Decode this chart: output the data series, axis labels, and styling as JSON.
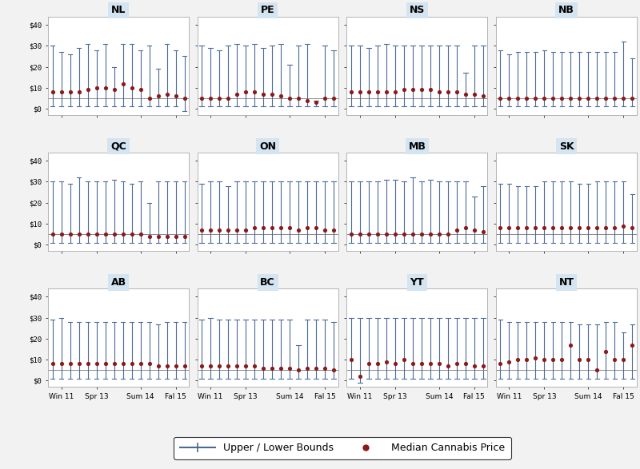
{
  "provinces": [
    "NL",
    "PE",
    "NS",
    "NB",
    "QC",
    "ON",
    "MB",
    "SK",
    "AB",
    "BC",
    "YT",
    "NT"
  ],
  "n_points": 16,
  "ylim": [
    -3,
    44
  ],
  "yticks": [
    0,
    10,
    20,
    30,
    40
  ],
  "yticklabels": [
    "$0",
    "$10",
    "$20",
    "$30",
    "$40"
  ],
  "hline_y": 5,
  "bar_color": "#4a6b9a",
  "dot_color": "#8b1a1a",
  "title_bg": "#d4e4f0",
  "subplot_bg": "#ffffff",
  "figure_bg": "#e8e8e8",
  "outer_bg": "#f2f2f2",
  "data": {
    "NL": {
      "medians": [
        8,
        8,
        8,
        8,
        9,
        10,
        10,
        9,
        12,
        10,
        9,
        5,
        6,
        7,
        6,
        5
      ],
      "upper": [
        30,
        27,
        26,
        29,
        31,
        28,
        31,
        20,
        31,
        31,
        28,
        30,
        19,
        31,
        28,
        25
      ],
      "lower": [
        1,
        1,
        1,
        1,
        1,
        1,
        1,
        1,
        1,
        1,
        1,
        1,
        1,
        1,
        1,
        -1
      ]
    },
    "PE": {
      "medians": [
        5,
        5,
        5,
        5,
        7,
        8,
        8,
        7,
        7,
        6,
        5,
        5,
        4,
        3,
        5,
        5
      ],
      "upper": [
        30,
        29,
        28,
        30,
        31,
        30,
        31,
        29,
        30,
        31,
        21,
        30,
        31,
        4,
        30,
        28
      ],
      "lower": [
        1,
        1,
        1,
        1,
        1,
        1,
        1,
        1,
        1,
        1,
        1,
        1,
        1,
        1,
        1,
        1
      ]
    },
    "NS": {
      "medians": [
        8,
        8,
        8,
        8,
        8,
        8,
        9,
        9,
        9,
        9,
        8,
        8,
        8,
        7,
        7,
        6
      ],
      "upper": [
        30,
        30,
        29,
        30,
        31,
        30,
        30,
        30,
        30,
        30,
        30,
        30,
        30,
        17,
        30,
        30
      ],
      "lower": [
        1,
        1,
        1,
        1,
        1,
        1,
        1,
        1,
        1,
        1,
        1,
        1,
        1,
        1,
        1,
        1
      ]
    },
    "NB": {
      "medians": [
        5,
        5,
        5,
        5,
        5,
        5,
        5,
        5,
        5,
        5,
        5,
        5,
        5,
        5,
        5,
        5
      ],
      "upper": [
        28,
        26,
        27,
        27,
        27,
        28,
        27,
        27,
        27,
        27,
        27,
        27,
        27,
        27,
        32,
        24
      ],
      "lower": [
        1,
        1,
        1,
        1,
        1,
        1,
        1,
        1,
        1,
        1,
        1,
        1,
        1,
        1,
        1,
        1
      ]
    },
    "QC": {
      "medians": [
        5,
        5,
        5,
        5,
        5,
        5,
        5,
        5,
        5,
        5,
        5,
        4,
        4,
        4,
        4,
        4
      ],
      "upper": [
        30,
        30,
        29,
        32,
        30,
        30,
        30,
        31,
        30,
        29,
        30,
        20,
        30,
        30,
        30,
        30
      ],
      "lower": [
        1,
        1,
        1,
        1,
        1,
        1,
        1,
        1,
        1,
        1,
        1,
        1,
        1,
        1,
        1,
        1
      ]
    },
    "ON": {
      "medians": [
        7,
        7,
        7,
        7,
        7,
        7,
        8,
        8,
        8,
        8,
        8,
        7,
        8,
        8,
        7,
        7
      ],
      "upper": [
        29,
        30,
        30,
        28,
        30,
        30,
        30,
        30,
        30,
        30,
        30,
        30,
        30,
        30,
        30,
        30
      ],
      "lower": [
        1,
        1,
        1,
        1,
        1,
        1,
        1,
        1,
        1,
        1,
        1,
        1,
        1,
        1,
        1,
        1
      ]
    },
    "MB": {
      "medians": [
        5,
        5,
        5,
        5,
        5,
        5,
        5,
        5,
        5,
        5,
        5,
        5,
        7,
        8,
        7,
        6
      ],
      "upper": [
        30,
        30,
        30,
        30,
        31,
        31,
        30,
        32,
        30,
        31,
        30,
        30,
        30,
        30,
        23,
        28
      ],
      "lower": [
        1,
        1,
        1,
        1,
        1,
        1,
        1,
        1,
        1,
        1,
        1,
        1,
        1,
        1,
        1,
        1
      ]
    },
    "SK": {
      "medians": [
        8,
        8,
        8,
        8,
        8,
        8,
        8,
        8,
        8,
        8,
        8,
        8,
        8,
        8,
        9,
        8
      ],
      "upper": [
        29,
        29,
        28,
        28,
        28,
        30,
        30,
        30,
        30,
        29,
        29,
        30,
        30,
        30,
        30,
        24
      ],
      "lower": [
        1,
        1,
        1,
        1,
        1,
        1,
        1,
        1,
        1,
        1,
        1,
        1,
        1,
        1,
        1,
        1
      ]
    },
    "AB": {
      "medians": [
        8,
        8,
        8,
        8,
        8,
        8,
        8,
        8,
        8,
        8,
        8,
        8,
        7,
        7,
        7,
        7
      ],
      "upper": [
        29,
        30,
        28,
        28,
        28,
        28,
        28,
        28,
        28,
        28,
        28,
        28,
        27,
        28,
        28,
        28
      ],
      "lower": [
        1,
        1,
        1,
        1,
        1,
        1,
        1,
        1,
        1,
        1,
        1,
        1,
        1,
        1,
        1,
        1
      ]
    },
    "BC": {
      "medians": [
        7,
        7,
        7,
        7,
        7,
        7,
        7,
        6,
        6,
        6,
        6,
        5,
        6,
        6,
        6,
        5
      ],
      "upper": [
        29,
        30,
        29,
        29,
        29,
        29,
        29,
        29,
        29,
        29,
        29,
        17,
        29,
        29,
        29,
        28
      ],
      "lower": [
        1,
        1,
        1,
        1,
        1,
        1,
        1,
        1,
        1,
        1,
        1,
        1,
        1,
        1,
        1,
        1
      ]
    },
    "YT": {
      "medians": [
        10,
        2,
        8,
        8,
        9,
        8,
        10,
        8,
        8,
        8,
        8,
        7,
        8,
        8,
        7,
        7
      ],
      "upper": [
        30,
        30,
        30,
        30,
        30,
        30,
        30,
        30,
        30,
        30,
        30,
        30,
        30,
        30,
        30,
        30
      ],
      "lower": [
        1,
        -1,
        1,
        1,
        1,
        1,
        1,
        1,
        1,
        1,
        1,
        1,
        1,
        1,
        1,
        1
      ]
    },
    "NT": {
      "medians": [
        8,
        9,
        10,
        10,
        11,
        10,
        10,
        10,
        17,
        10,
        10,
        5,
        14,
        10,
        10,
        17
      ],
      "upper": [
        29,
        28,
        28,
        28,
        28,
        28,
        28,
        28,
        28,
        27,
        27,
        27,
        28,
        28,
        23,
        27
      ],
      "lower": [
        1,
        1,
        1,
        1,
        1,
        1,
        1,
        1,
        1,
        1,
        1,
        1,
        1,
        1,
        1,
        1
      ]
    }
  }
}
